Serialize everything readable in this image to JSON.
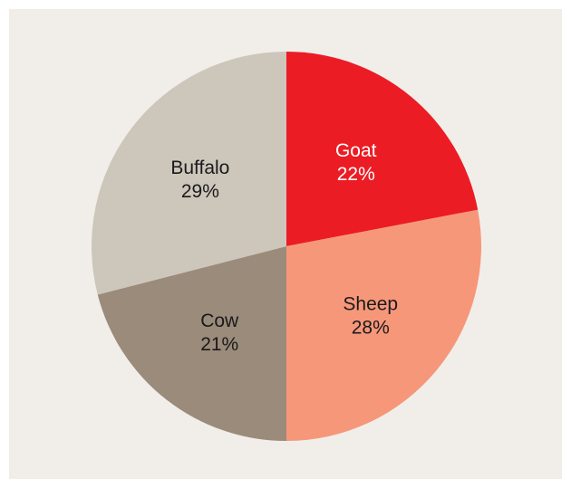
{
  "chart_data": {
    "type": "pie",
    "slices": [
      {
        "label": "Goat",
        "value": 22,
        "display": "22%",
        "color": "#ec1c24",
        "label_color": "#ffffff"
      },
      {
        "label": "Sheep",
        "value": 28,
        "display": "28%",
        "color": "#f7977a",
        "label_color": "#1a1a1a"
      },
      {
        "label": "Cow",
        "value": 21,
        "display": "21%",
        "color": "#9b8b7b",
        "label_color": "#1a1a1a"
      },
      {
        "label": "Buffalo",
        "value": 29,
        "display": "29%",
        "color": "#cdc6bb",
        "label_color": "#1a1a1a"
      }
    ],
    "start": "12 o'clock",
    "direction": "clockwise",
    "legend": "none"
  }
}
